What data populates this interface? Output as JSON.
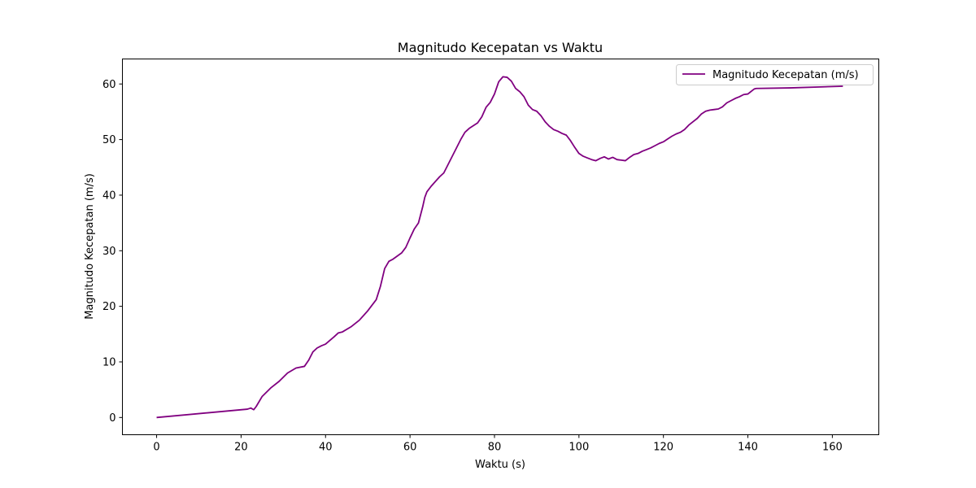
{
  "chart_data": {
    "type": "line",
    "title": "Magnitudo Kecepatan vs Waktu",
    "xlabel": "Waktu (s)",
    "ylabel": "Magnitudo Kecepatan (m/s)",
    "xlim": [
      -8.1,
      171
    ],
    "ylim": [
      -3.1,
      64.5
    ],
    "xticks": [
      0,
      20,
      40,
      60,
      80,
      100,
      120,
      140,
      160
    ],
    "yticks": [
      0,
      10,
      20,
      30,
      40,
      50,
      60
    ],
    "grid": false,
    "legend_position": "top-right",
    "series": [
      {
        "name": "Magnitudo Kecepatan (m/s)",
        "color": "#800080",
        "x": [
          0,
          21.5,
          22.3,
          23,
          23.6,
          25,
          27,
          29,
          31,
          33,
          35,
          36,
          37,
          38,
          39,
          40,
          42,
          43,
          44,
          46,
          48,
          50,
          52,
          53,
          54,
          55,
          56,
          58,
          59,
          60,
          61,
          62,
          63,
          63.5,
          64,
          65,
          67,
          68,
          69,
          70,
          71,
          72,
          73,
          74,
          76,
          77,
          78,
          79,
          80,
          81,
          82,
          83,
          84,
          85,
          86,
          87,
          88,
          89,
          90,
          91,
          92,
          93,
          94,
          95,
          96,
          97,
          98,
          99,
          100,
          101,
          102,
          103,
          104,
          105,
          106,
          107,
          108,
          109,
          110,
          111,
          112,
          113,
          114,
          115,
          116,
          117,
          118,
          119,
          120,
          121,
          122,
          123,
          124,
          125,
          126,
          127,
          128,
          129,
          130,
          131,
          132,
          133,
          134,
          135,
          136,
          137,
          138,
          139,
          140,
          140.5,
          141,
          141.5,
          142,
          150,
          162.5
        ],
        "y": [
          0,
          1.5,
          1.7,
          1.4,
          2.0,
          3.8,
          5.3,
          6.5,
          8.0,
          8.9,
          9.2,
          10.3,
          11.8,
          12.5,
          12.9,
          13.2,
          14.5,
          15.2,
          15.4,
          16.3,
          17.5,
          19.2,
          21.2,
          23.6,
          26.8,
          28.1,
          28.5,
          29.6,
          30.6,
          32.3,
          33.9,
          35.0,
          37.9,
          39.6,
          40.6,
          41.6,
          43.3,
          44.0,
          45.5,
          47.0,
          48.5,
          50.0,
          51.3,
          52.0,
          53.0,
          54.1,
          55.8,
          56.7,
          58.2,
          60.4,
          61.3,
          61.2,
          60.5,
          59.2,
          58.6,
          57.7,
          56.2,
          55.4,
          55.1,
          54.3,
          53.2,
          52.4,
          51.8,
          51.5,
          51.1,
          50.8,
          49.8,
          48.6,
          47.5,
          47.0,
          46.7,
          46.4,
          46.2,
          46.6,
          46.9,
          46.5,
          46.8,
          46.4,
          46.3,
          46.2,
          46.8,
          47.3,
          47.5,
          47.9,
          48.2,
          48.5,
          48.9,
          49.3,
          49.6,
          50.1,
          50.6,
          51.0,
          51.3,
          51.8,
          52.6,
          53.2,
          53.8,
          54.6,
          55.1,
          55.3,
          55.4,
          55.5,
          55.9,
          56.6,
          57.0,
          57.4,
          57.7,
          58.1,
          58.2,
          58.5,
          58.8,
          59.1,
          59.2,
          59.3,
          59.6
        ]
      }
    ]
  }
}
